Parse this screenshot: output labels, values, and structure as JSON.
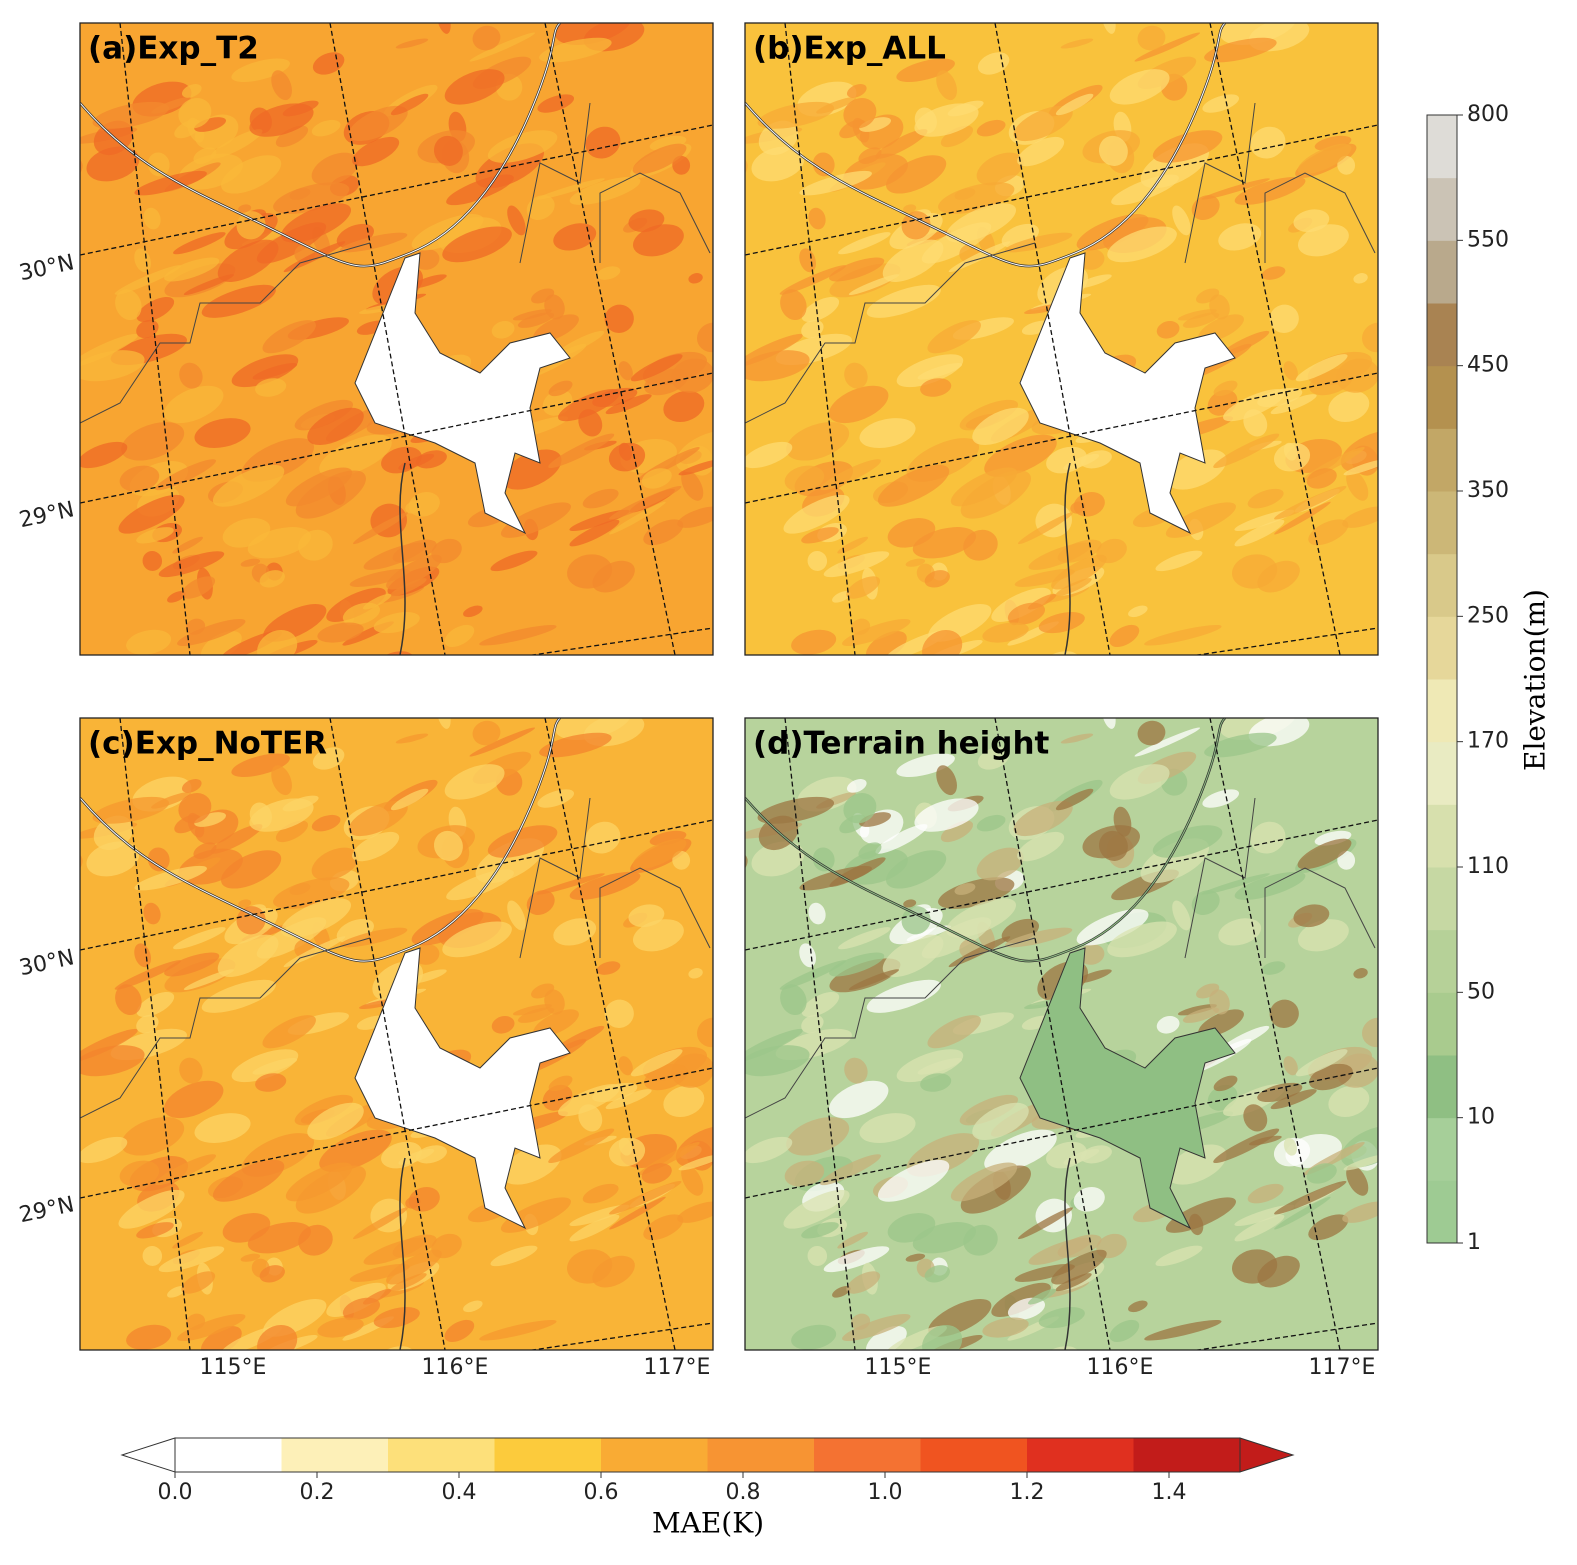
{
  "panels": [
    {
      "title": "(a)Exp_T2"
    },
    {
      "title": "(b)Exp_ALL"
    },
    {
      "title": "(c)Exp_NoTER"
    },
    {
      "title": "(d)Terrain height"
    }
  ],
  "latitude_labels": [
    "30°N",
    "29°N"
  ],
  "longitude_labels": [
    "115°E",
    "116°E",
    "117°E"
  ],
  "mae_colorbar": {
    "label": "MAE(K)",
    "lim": [
      0,
      1.5
    ],
    "ticks": [
      {
        "value": 0,
        "label": "0.0"
      },
      0.2,
      0.4,
      0.6,
      0.8,
      {
        "value": 1,
        "label": "1.0"
      },
      1.2,
      1.4
    ],
    "colors": [
      "#ffffff",
      "#fdf0b8",
      "#fde07a",
      "#fccb3c",
      "#f9ab34",
      "#f79433",
      "#f47232",
      "#f05420",
      "#e0301f",
      "#c21c1a"
    ]
  },
  "elevation_colorbar": {
    "label": "Elevation(m)",
    "ticks": [
      1,
      10,
      50,
      110,
      170,
      250,
      350,
      450,
      550,
      800
    ],
    "colors": [
      "#9ecb93",
      "#a6cf99",
      "#8fbf83",
      "#a9cb8e",
      "#b6d198",
      "#c6d8a3",
      "#d7e0ad",
      "#e9ebc2",
      "#efe9b5",
      "#e6d79a",
      "#d9c98a",
      "#ccb777",
      "#c2a766",
      "#b4914f",
      "#a98352",
      "#b9a98c",
      "#cbc3b5",
      "#dedcd7"
    ]
  }
}
